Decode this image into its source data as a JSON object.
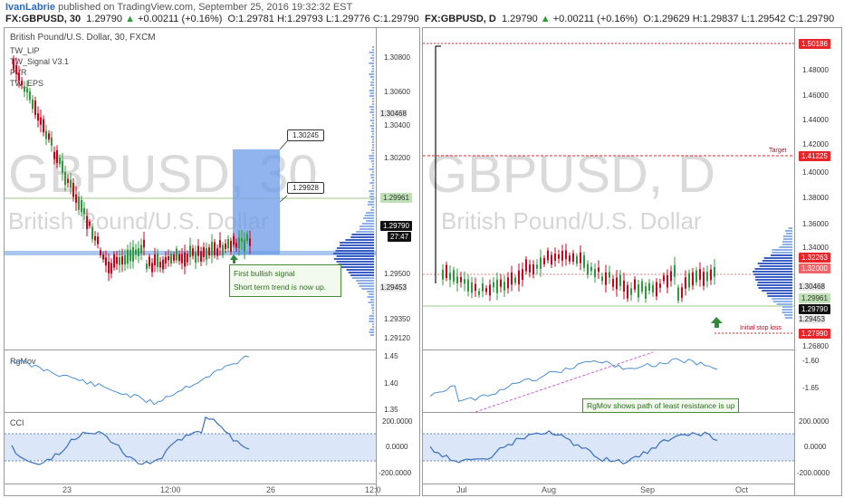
{
  "attribution": {
    "user": "IvanLabrie",
    "text": " published on TradingView.com, September 25, 2016 19:32:32 EST"
  },
  "left": {
    "symbol": "FX:GBPUSD, 30",
    "price": "1.29790",
    "change": "+0.00211 (+0.16%)",
    "o": "O:1.29781",
    "h": "H:1.29793",
    "l": "L:1.29776",
    "c": "C:1.29790",
    "title": "British Pound/U.S. Dollar, 30, FXCM",
    "indicators": [
      "TW_LIP",
      "TW_Signal V3.1",
      "PVR",
      "TW_EPS"
    ],
    "watermark": "GBPUSD, 30",
    "watermark_sub": "British Pound/U.S. Dollar",
    "price_labels": [
      "1.30800",
      "1.30600",
      "1.30468",
      "1.30400",
      "1.30200",
      "1.29961",
      "1.29790",
      "27:47",
      "1.29500",
      "1.29453",
      "1.29350",
      "1.29120"
    ],
    "callout_top": "1.30245",
    "callout_mid": "1.29928",
    "note1": "First bullish signal",
    "note2": "Short term trend is now up.",
    "rgmov": "RgMov",
    "rgmov_ticks": [
      "1.45",
      "1.40",
      "1.35"
    ],
    "cci": "CCI",
    "cci_ticks": [
      "200.0000",
      "0.0000",
      "-200.0000"
    ],
    "time_labels": [
      "23",
      "12:00",
      "26",
      "12:0"
    ]
  },
  "right": {
    "symbol": "FX:GBPUSD, D",
    "price": "1.29790",
    "change": "+0.00211 (+0.16%)",
    "o": "O:1.29629",
    "h": "H:1.29837",
    "l": "L:1.29542",
    "c": "C:1.29790",
    "watermark": "GBPUSD, D",
    "watermark_sub": "British Pound/U.S. Dollar",
    "price_labels": [
      "1.50186",
      "1.48000",
      "1.46000",
      "1.44000",
      "1.42000",
      "1.41225",
      "1.40000",
      "1.38000",
      "1.36000",
      "1.34000",
      "1.32263",
      "1.32000",
      "1.30468",
      "1.29961",
      "1.29790",
      "1.29453",
      "1.27990",
      "1.26800"
    ],
    "target": "Target",
    "stop": "Initial stop loss",
    "note": "RgMov shows path of least resistance is up",
    "rgmov_ticks": [
      "-1.60",
      "-1.65"
    ],
    "cci_ticks": [
      "200.0000",
      "0.0000",
      "-200.0000"
    ],
    "time_labels": [
      "Jul",
      "Aug",
      "Sep",
      "Oct"
    ]
  },
  "colors": {
    "up": "#2e9b3a",
    "down": "#d0021b",
    "accent": "#6d9be8",
    "line": "#4b8fd6"
  }
}
